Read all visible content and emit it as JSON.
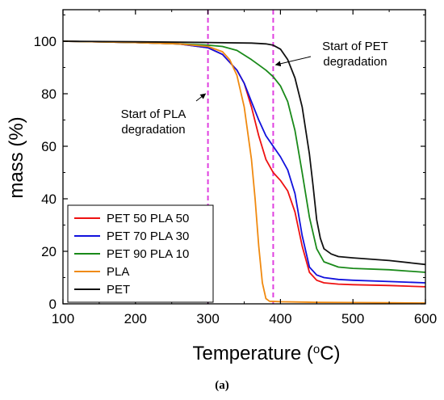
{
  "chart_data": {
    "type": "line",
    "xlabel": "Temperature (°C)",
    "ylabel": "mass (%)",
    "xlim": [
      100,
      600
    ],
    "ylim": [
      0,
      112
    ],
    "x_ticks": [
      "100",
      "200",
      "300",
      "400",
      "500",
      "600"
    ],
    "y_ticks": [
      "0",
      "20",
      "40",
      "60",
      "80",
      "100"
    ],
    "grid": false,
    "legend_position": "bottom-left",
    "vertical_markers": [
      {
        "x": 300,
        "color": "#e040e0"
      },
      {
        "x": 390,
        "color": "#e040e0"
      }
    ],
    "annotations": [
      {
        "lines": [
          "Start of PLA",
          "degradation"
        ],
        "points_to_x": 300,
        "points_to_y": 80
      },
      {
        "lines": [
          "Start of PET",
          "degradation"
        ],
        "points_to_x": 390,
        "points_to_y": 91
      }
    ],
    "series": [
      {
        "name": "PET 50 PLA 50",
        "color": "#ee1111",
        "x": [
          100,
          200,
          260,
          300,
          320,
          340,
          350,
          360,
          370,
          380,
          390,
          400,
          410,
          420,
          430,
          440,
          450,
          460,
          480,
          500,
          550,
          600
        ],
        "y": [
          100,
          99.5,
          99,
          97.5,
          95,
          89,
          84,
          75,
          64,
          55,
          50,
          47,
          43,
          35,
          22,
          12,
          9,
          8,
          7.5,
          7.3,
          7,
          6.5
        ]
      },
      {
        "name": "PET 70 PLA 30",
        "color": "#1111dd",
        "x": [
          100,
          200,
          260,
          300,
          320,
          340,
          350,
          360,
          370,
          380,
          390,
          400,
          410,
          420,
          430,
          440,
          450,
          460,
          480,
          500,
          550,
          600
        ],
        "y": [
          100,
          99.5,
          99,
          97.5,
          95,
          89,
          84,
          77,
          70,
          64,
          60,
          56,
          51,
          42,
          26,
          14,
          11,
          10,
          9.3,
          9,
          8.5,
          8
        ]
      },
      {
        "name": "PET 90 PLA 10",
        "color": "#1a8a1a",
        "x": [
          100,
          200,
          260,
          300,
          320,
          340,
          360,
          370,
          380,
          390,
          400,
          410,
          420,
          430,
          440,
          450,
          460,
          480,
          500,
          550,
          600
        ],
        "y": [
          100,
          99.5,
          99,
          98.5,
          98,
          96.5,
          93,
          91,
          89,
          86.5,
          83,
          77,
          66,
          50,
          33,
          21,
          16,
          14,
          13.5,
          13,
          12
        ]
      },
      {
        "name": "PLA",
        "color": "#f08a10",
        "x": [
          100,
          200,
          260,
          300,
          320,
          330,
          340,
          350,
          360,
          365,
          370,
          375,
          380,
          385,
          400,
          450,
          500,
          550,
          600
        ],
        "y": [
          100,
          99.5,
          99,
          98,
          96,
          93,
          87,
          75,
          55,
          40,
          22,
          8,
          2,
          1,
          0.8,
          0.6,
          0.5,
          0.4,
          0.3
        ]
      },
      {
        "name": "PET",
        "color": "#111111",
        "x": [
          100,
          200,
          300,
          360,
          380,
          390,
          400,
          410,
          420,
          430,
          440,
          445,
          450,
          455,
          460,
          470,
          480,
          500,
          550,
          600
        ],
        "y": [
          100,
          99.8,
          99.5,
          99.3,
          99,
          98.5,
          97,
          93,
          86,
          75,
          57,
          45,
          32,
          25,
          21,
          19,
          18,
          17.5,
          16.5,
          15
        ]
      }
    ]
  },
  "caption": "(a)"
}
